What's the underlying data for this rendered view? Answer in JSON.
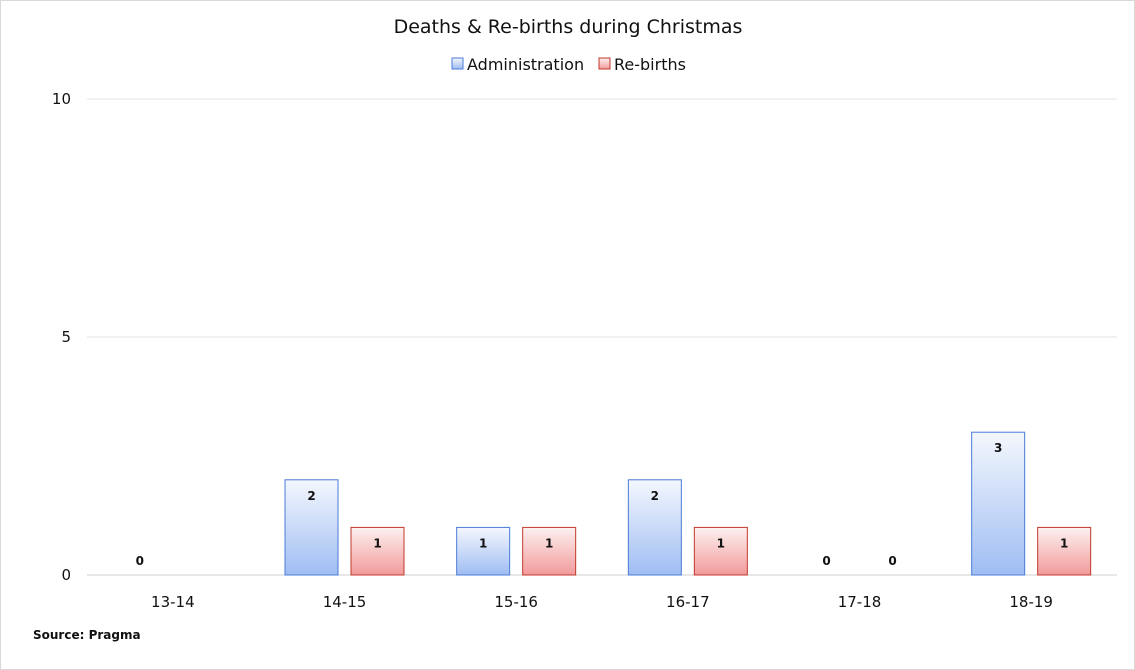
{
  "chart_data": {
    "type": "bar",
    "title": "Deaths & Re-births during Christmas",
    "categories": [
      "13-14",
      "14-15",
      "15-16",
      "16-17",
      "17-18",
      "18-19"
    ],
    "series": [
      {
        "name": "Administration",
        "values": [
          0,
          2,
          1,
          2,
          0,
          3
        ],
        "color": "#7aa3f0"
      },
      {
        "name": "Re-births",
        "values": [
          null,
          1,
          1,
          1,
          0,
          1
        ],
        "color": "#e06666"
      }
    ],
    "ylim": [
      0,
      10
    ],
    "yticks": [
      0,
      5,
      10
    ],
    "xlabel": "",
    "ylabel": "",
    "grid": true,
    "legend": "top-center"
  },
  "source": "Source: Pragma"
}
